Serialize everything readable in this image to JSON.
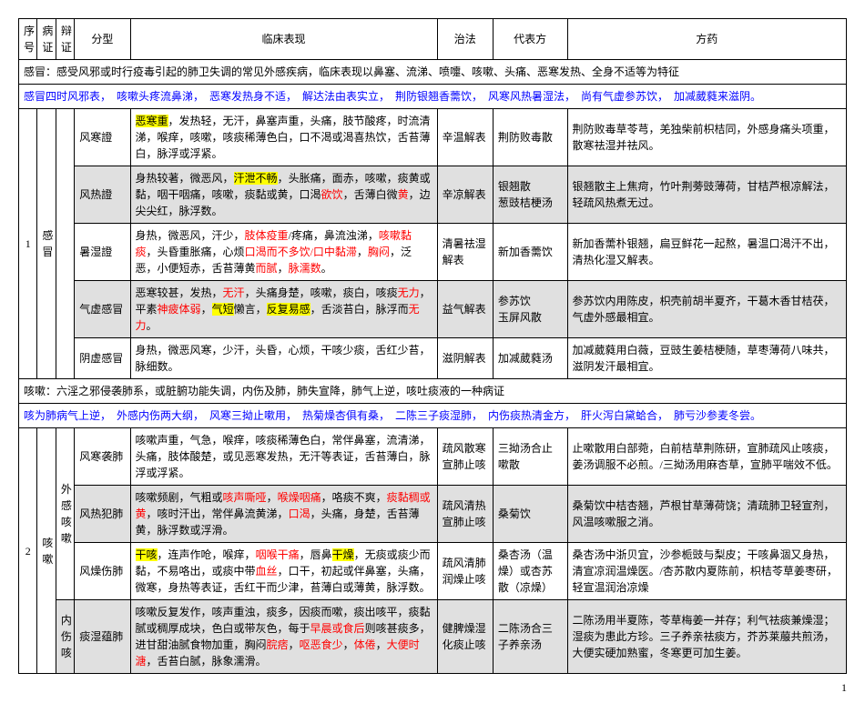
{
  "headers": {
    "xu": "序号",
    "bz": "病证",
    "bian": "辩证",
    "fx": "分型",
    "lc": "临床表现",
    "zf": "治法",
    "df": "代表方",
    "fy": "方药"
  },
  "ganmao_intro": "感冒：感受风邪或时行疫毒引起的肺卫失调的常见外感疾病，临床表现以鼻塞、流涕、喷嚏、咳嗽、头痛、恶寒发热、全身不适等为特征",
  "ganmao_blue": {
    "p1": "感冒四时风邪表，　咳嗽头疼流鼻涕，　恶寒发热身不适，　解达法由表实立，　荆防银翘香薷饮，　风寒风热暑湿法，　尚有气虚参苏饮，　加减葳蕤来滋阴。"
  },
  "gm": {
    "num": "1",
    "name": "感冒",
    "rows": [
      {
        "fx": "风寒證",
        "lc_pre": "",
        "lc_hl1": "恶寒重",
        "lc_mid1": "，发热轻，无汗，鼻塞声重，头痛，肢节酸疼，时流清涕，喉痒，咳嗽，咳痰稀薄色白，口不渴或渴喜热饮，舌苔薄白，脉浮或浮紧。",
        "zf": "辛温解表",
        "df": "荆防败毒散",
        "fy": "荆防败毒草苓芎，羌独柴前枳桔同，外感身痛头项重，散寒祛湿并祛风。"
      },
      {
        "fx": "风热證",
        "lc_pre": "身热较著，微恶风，",
        "lc_hl1": "汗泄不畅",
        "lc_mid1": "，头胀痛，面赤，咳嗽，痰黄或黏，咽干咽痛，咳嗽，痰黏或黄，口渴",
        "lc_red1": "欲饮",
        "lc_mid2": "，舌薄白微",
        "lc_red2": "黄",
        "lc_mid3": "，边尖尖红，脉浮数。",
        "zf": "辛凉解表",
        "df": "银翘散\n葱豉桔梗汤",
        "fy": "银翘散主上焦疴，竹叶荆蒡豉薄荷，甘桔芦根凉解法，轻疏风热煮无过。",
        "grey": true
      },
      {
        "fx": "暑湿證",
        "lc_pre": "身热，微恶风，汗少，",
        "lc_red1": "肢体疫重",
        "lc_mid1": "/疼痛，鼻流浊涕，",
        "lc_red2": "咳嗽黏痰",
        "lc_mid2": "，头昏重胀痛，心烦",
        "lc_red3": "口渴而不多饮/口中黏滞",
        "lc_mid3": "，",
        "lc_red4": "胸闷",
        "lc_mid4": "，泛恶，小便短赤，舌苔薄黄",
        "lc_red5": "而腻",
        "lc_mid5": "，",
        "lc_red6": "脉濡数",
        "lc_mid6": "。",
        "zf": "清暑祛湿解表",
        "df": "新加香薷饮",
        "fy": "新加香薷朴银翘，扁豆鲜花一起熬，暑温口渴汗不出，清热化湿又解表。"
      },
      {
        "fx": "气虚感冒",
        "lc_pre": "恶寒较甚，发热，",
        "lc_red1": "无汗",
        "lc_mid1": "，头痛身楚，咳嗽，痰白，咳痰",
        "lc_red2": "无力",
        "lc_mid2": "，平素",
        "lc_red3": "神疲体弱",
        "lc_mid3": "，",
        "lc_hl1": "气短",
        "lc_mid4": "懒言，",
        "lc_hl2": "反复易感",
        "lc_mid5": "，舌淡苔白，脉浮而",
        "lc_red4": "无力",
        "lc_mid6": "。",
        "zf": "益气解表",
        "df": "参苏饮\n玉屏风散",
        "fy": "参苏饮内用陈皮，枳壳前胡半夏齐，干葛木香甘桔茯，气虚外感最相宜。",
        "grey": true
      },
      {
        "fx": "阴虚感冒",
        "lc_pre": "身热，微恶风寒，少汗，头昏，心烦，干咳少痰，舌红少苔，脉细数。",
        "zf": "滋阴解表",
        "df": "加减葳蕤汤",
        "fy": "加减葳蕤用白薇，豆豉生姜桔梗随，草枣薄荷八味共，滋阴发汗最相宜。"
      }
    ]
  },
  "kesou_intro": "咳嗽：六淫之邪侵袭肺系，或脏腑功能失调，内伤及肺，肺失宣降，肺气上逆，咳吐痰液的一种病证",
  "kesou_blue": "咳为肺病气上逆，　外感内伤两大纲，　风寒三拗止嗽用，　热菊燥杏俱有桑，　二陈三子痰湿肺，　内伤痰热清金方，　肝火泻白黛蛤合，　肺亏沙参麦冬尝。",
  "ks": {
    "num": "2",
    "name": "咳嗽",
    "cat1": "外感咳嗽",
    "cat2": "内伤咳",
    "rows_wai": [
      {
        "fx": "风寒袭肺",
        "lc": "咳嗽声重，气急，喉痒，咳痰稀薄色白，常伴鼻塞，流清涕，头痛，肢体酸楚，或见恶寒发热，无汗等表证，舌苔薄白，脉浮或浮紧。",
        "zf": "疏风散寒\n宣肺止咳",
        "df": "三拗汤合止嗽散",
        "fy": "止嗽散用白部菀，白前桔草荆陈研，宣肺疏风止咳痰，姜汤调服不必煎。/三拗汤用麻杏草，宣肺平喘效不低。"
      },
      {
        "fx": "风热犯肺",
        "lc_pre": "咳嗽频剧，气粗或",
        "lc_red1": "咳声嘶哑",
        "lc_mid1": "，",
        "lc_red2": "喉燥咽痛",
        "lc_mid2": "，咯痰不爽，",
        "lc_red3": "痰黏稠或黄",
        "lc_mid3": "，咳时汗出，常伴鼻流黄涕，",
        "lc_red4": "口渴",
        "lc_mid4": "，头痛，身楚，舌苔薄黄，脉浮数或浮滑。",
        "zf": "疏风清热\n宣肺止咳",
        "df": "桑菊饮",
        "fy": "桑菊饮中桔杏翘，芦根甘草薄荷饶；清疏肺卫轻宣剂，风温咳嗽服之消。",
        "grey": true
      },
      {
        "fx": "风燥伤肺",
        "lc_pre": "",
        "lc_hl1": "干咳",
        "lc_mid1": "，连声作呛，喉痒，",
        "lc_red1": "咽喉干痛",
        "lc_mid2": "，唇鼻",
        "lc_hl2": "干燥",
        "lc_mid3": "，无痰或痰少而黏，不易咯出，或痰中带",
        "lc_red2": "血丝",
        "lc_mid4": "，口干，初起或伴鼻塞，头痛，微寒，身热等表证，舌红干而少津，苔薄白或薄黄，脉浮数。",
        "zf": "疏风清肺\n润燥止咳",
        "df": "桑杏汤（温燥）或杏苏散（凉燥）",
        "fy": "桑杏汤中浙贝宜，沙参栀豉与梨皮；干咳鼻涸又身热，清宣凉润温燥医。/杏苏散内夏陈前，枳桔苓草姜枣研，轻宣温润治凉燥"
      }
    ],
    "rows_nei": [
      {
        "fx": "痰湿蕴肺",
        "lc_pre": "咳嗽反复发作，咳声重浊，痰多，因痰而嗽，痰出咳平，痰黏腻或稠厚成块，色白或带灰色，每于",
        "lc_red1": "早晨或食后",
        "lc_mid1": "则咳甚痰多，进甘甜油腻食物加重，胸闷",
        "lc_red2": "脘痞",
        "lc_mid2": "，",
        "lc_red3": "呕恶食少",
        "lc_mid3": "，",
        "lc_red4": "体倦",
        "lc_mid4": "，",
        "lc_red5": "大便时溏",
        "lc_mid5": "，舌苔白腻，脉象濡滑。",
        "zf": "健脾燥湿\n化痰止咳",
        "df": "二陈汤合三子养亲汤",
        "fy": "二陈汤用半夏陈，苓草梅姜一并存；利气祛痰兼燥湿；湿痰为患此方珍。三子养亲祛痰方，芥苏莱菔共煎汤，大便实硬加熟蜜，冬寒更可加生姜。",
        "grey": true
      }
    ]
  },
  "pagenum": "1"
}
